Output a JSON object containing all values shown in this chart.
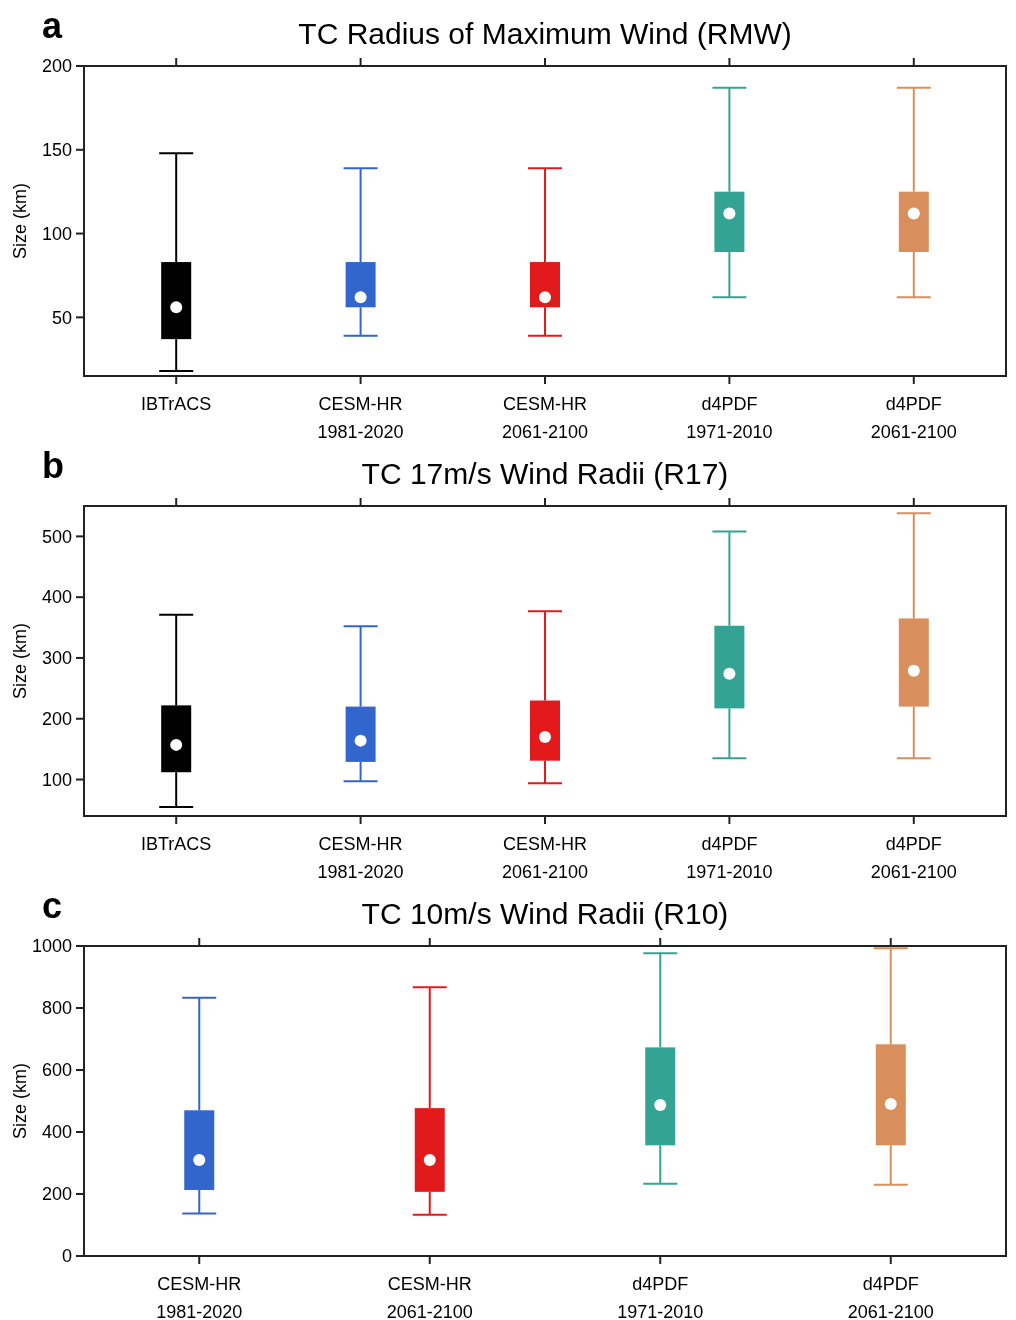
{
  "chart_data": [
    {
      "type": "box",
      "title": "TC Radius of Maximum Wind (RMW)",
      "ylabel": "Size (km)",
      "annotations": [
        "a"
      ],
      "categories": [
        "IBTrACS",
        "CESM-HR\n1981-2020",
        "CESM-HR\n2061-2100",
        "d4PDF\n1971-2010",
        "d4PDF\n2061-2100"
      ],
      "colors": [
        "#000000",
        "#3366cc",
        "#e31a1c",
        "#33a394",
        "#d98f5c"
      ],
      "ylim": [
        15,
        200
      ],
      "yticks": [
        50,
        100,
        150,
        200
      ],
      "boxes": [
        {
          "low": 18,
          "q1": 37,
          "median": 56,
          "q3": 83,
          "high": 148
        },
        {
          "low": 39,
          "q1": 56,
          "median": 62,
          "q3": 83,
          "high": 139
        },
        {
          "low": 39,
          "q1": 56,
          "median": 62,
          "q3": 83,
          "high": 139
        },
        {
          "low": 62,
          "q1": 89,
          "median": 112,
          "q3": 125,
          "high": 187
        },
        {
          "low": 62,
          "q1": 89,
          "median": 112,
          "q3": 125,
          "high": 187
        }
      ]
    },
    {
      "type": "box",
      "title": "TC 17m/s Wind Radii (R17)",
      "ylabel": "Size (km)",
      "annotations": [
        "b"
      ],
      "categories": [
        "IBTrACS",
        "CESM-HR\n1981-2020",
        "CESM-HR\n2061-2100",
        "d4PDF\n1971-2010",
        "d4PDF\n2061-2100"
      ],
      "colors": [
        "#000000",
        "#3366cc",
        "#e31a1c",
        "#33a394",
        "#d98f5c"
      ],
      "ylim": [
        40,
        550
      ],
      "yticks": [
        100,
        200,
        300,
        400,
        500
      ],
      "boxes": [
        {
          "low": 55,
          "q1": 112,
          "median": 157,
          "q3": 222,
          "high": 371
        },
        {
          "low": 97,
          "q1": 129,
          "median": 164,
          "q3": 220,
          "high": 352
        },
        {
          "low": 94,
          "q1": 131,
          "median": 170,
          "q3": 230,
          "high": 377
        },
        {
          "low": 135,
          "q1": 217,
          "median": 274,
          "q3": 353,
          "high": 508
        },
        {
          "low": 135,
          "q1": 220,
          "median": 279,
          "q3": 365,
          "high": 538
        }
      ]
    },
    {
      "type": "box",
      "title": "TC 10m/s Wind Radii (R10)",
      "ylabel": "Size (km)",
      "annotations": [
        "c"
      ],
      "categories": [
        "CESM-HR\n1981-2020",
        "CESM-HR\n2061-2100",
        "d4PDF\n1971-2010",
        "d4PDF\n2061-2100"
      ],
      "colors": [
        "#3366cc",
        "#e31a1c",
        "#33a394",
        "#d98f5c"
      ],
      "ylim": [
        0,
        1000
      ],
      "yticks": [
        0,
        200,
        400,
        600,
        800,
        1000
      ],
      "boxes": [
        {
          "low": 137,
          "q1": 213,
          "median": 310,
          "q3": 470,
          "high": 833
        },
        {
          "low": 133,
          "q1": 207,
          "median": 310,
          "q3": 477,
          "high": 867
        },
        {
          "low": 233,
          "q1": 357,
          "median": 487,
          "q3": 673,
          "high": 977
        },
        {
          "low": 230,
          "q1": 357,
          "median": 490,
          "q3": 683,
          "high": 993
        }
      ]
    }
  ]
}
